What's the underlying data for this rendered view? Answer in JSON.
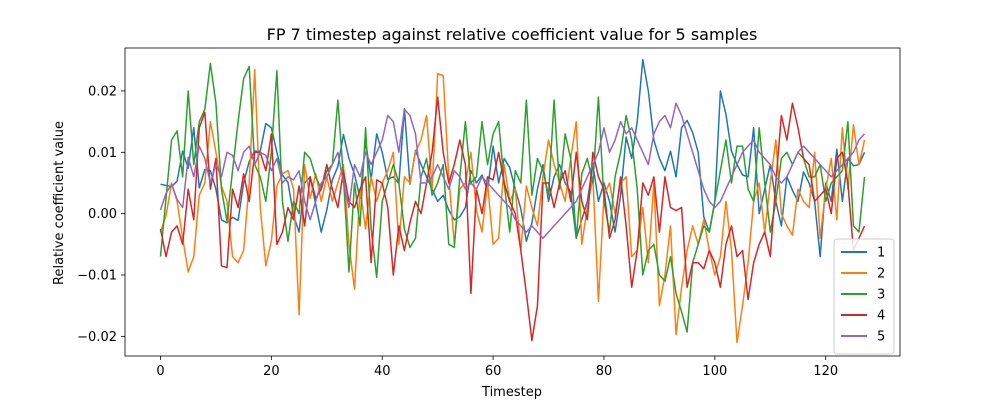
{
  "chart_data": {
    "type": "line",
    "title": "FP 7 timestep against relative coefficient value for 5 samples",
    "xlabel": "Timestep",
    "ylabel": "Relative coefficient value",
    "xlim": [
      -6.4,
      133.4
    ],
    "ylim": [
      -0.0232,
      0.027
    ],
    "xticks": [
      0,
      20,
      40,
      60,
      80,
      100,
      120
    ],
    "xtick_labels": [
      "0",
      "20",
      "40",
      "60",
      "80",
      "100",
      "120"
    ],
    "yticks": [
      -0.02,
      -0.01,
      0.0,
      0.01,
      0.02
    ],
    "ytick_labels": [
      "−0.02",
      "−0.01",
      "0.00",
      "0.01",
      "0.02"
    ],
    "grid": false,
    "legend_position": "lower-right",
    "series": [
      {
        "name": "1",
        "color": "#1f77b4",
        "values": [
          0.0048,
          0.0046,
          0.0044,
          0.0053,
          0.0102,
          0.0074,
          0.014,
          0.0042,
          0.0072,
          0.007,
          0.004,
          -0.001,
          -0.0015,
          -0.0006,
          -0.0011,
          0.005,
          0.0085,
          0.0102,
          0.0102,
          0.0147,
          0.014,
          0.01,
          0.0063,
          0.0051,
          -0.0003,
          -0.003,
          0.005,
          0.006,
          0.0015,
          -0.003,
          0.0006,
          0.0055,
          0.0077,
          0.0129,
          0.009,
          0.0064,
          0.0025,
          0.0118,
          0.0056,
          0.013,
          0.01,
          0.0056,
          0.006,
          0.0049,
          0.0171,
          0.0048,
          0.0103,
          0.008,
          0.006,
          0.004,
          0.002,
          0.003,
          0.0006,
          -0.001,
          -0.0005,
          0.001,
          0.007,
          0.005,
          0.0063,
          0.0038,
          0.011,
          0.005,
          0.009,
          0.0075,
          0.004,
          0.0008,
          -0.0045,
          -0.0015,
          0.004,
          0.008,
          0.002,
          0.006,
          0.008,
          0.005,
          0.0035,
          -0.004,
          -0.001,
          0.002,
          0.008,
          0.002,
          0.005,
          0.002,
          -0.003,
          0.003,
          0.0125,
          0.009,
          0.015,
          0.0251,
          0.02,
          0.012,
          0.009,
          0.007,
          0.0102,
          0.006,
          0.014,
          0.0152,
          0.0132,
          0.01,
          -0.0005,
          -0.003,
          0.002,
          0.02,
          0.0162,
          0.0102,
          0.008,
          0.0063,
          0.006,
          0.014,
          0.0,
          0.004,
          0.008,
          0.002,
          -0.002,
          0.006,
          0.0038,
          0.002,
          0.0068,
          0.005,
          0.002,
          -0.007,
          0.005,
          0.002,
          0.0105,
          0.002,
          0.009,
          0.0078,
          0.008,
          0.01
        ]
      },
      {
        "name": "2",
        "color": "#ff7f0e",
        "values": [
          -0.003,
          -0.0003,
          0.005,
          0.002,
          -0.004,
          -0.0095,
          -0.007,
          0.003,
          0.005,
          0.015,
          0.01,
          0.0045,
          0.002,
          -0.007,
          -0.008,
          -0.006,
          0.005,
          0.0235,
          0.001,
          -0.0085,
          -0.0045,
          0.0045,
          0.0065,
          0.007,
          0.004,
          -0.0165,
          0.008,
          0.0025,
          0.0065,
          0.002,
          0.006,
          0.002,
          0.005,
          0.008,
          -0.005,
          -0.0123,
          0.004,
          -0.0025,
          0.006,
          0.002,
          0.005,
          0.007,
          0.01,
          -0.005,
          0.006,
          0.005,
          0.01,
          0.012,
          0.016,
          0.004,
          0.0228,
          0.0225,
          0.006,
          -0.005,
          0.004,
          0.005,
          0.01,
          0.0005,
          -0.003,
          0.005,
          -0.005,
          -0.004,
          0.008,
          0.002,
          0.004,
          -0.006,
          0.0045,
          0.001,
          -0.002,
          0.006,
          0.012,
          0.008,
          0.005,
          0.002,
          0.009,
          0.015,
          -0.005,
          0.001,
          0.006,
          -0.0143,
          0.003,
          0.005,
          0.0,
          0.005,
          0.006,
          -0.007,
          -0.006,
          0.001,
          -0.008,
          0.005,
          -0.015,
          -0.01,
          -0.002,
          -0.0197,
          -0.012,
          -0.006,
          -0.002,
          -0.005,
          -0.001,
          -0.006,
          -0.01,
          -0.007,
          0.002,
          -0.006,
          -0.021,
          -0.015,
          -0.008,
          0.002,
          0.005,
          -0.003,
          0.005,
          0.012,
          0.0,
          -0.002,
          -0.0035,
          0.004,
          0.002,
          0.001,
          0.01,
          -0.004,
          0.004,
          0.009,
          -0.001,
          0.014,
          0.004,
          0.0145,
          0.008,
          0.012
        ]
      },
      {
        "name": "3",
        "color": "#2ca02c",
        "values": [
          -0.007,
          0.0025,
          0.012,
          0.0135,
          0.006,
          0.02,
          0.008,
          0.015,
          0.017,
          0.0245,
          0.018,
          0.004,
          -0.0012,
          0.007,
          0.015,
          0.022,
          0.024,
          0.008,
          0.006,
          0.002,
          0.01,
          0.0233,
          0.002,
          -0.0045,
          0.002,
          0.0,
          0.01,
          0.009,
          0.006,
          0.004,
          0.007,
          0.008,
          0.0185,
          0.006,
          -0.0095,
          0.005,
          -0.002,
          0.014,
          -0.0025,
          -0.0104,
          0.002,
          0.005,
          0.008,
          0.005,
          -0.0025,
          -0.0055,
          -0.004,
          0.006,
          0.009,
          0.003,
          0.005,
          0.008,
          -0.005,
          -0.0055,
          0.006,
          0.015,
          0.005,
          0.006,
          0.015,
          0.008,
          0.013,
          0.015,
          0.005,
          -0.003,
          0.007,
          0.005,
          0.0185,
          0.003,
          0.009,
          0.007,
          0.003,
          0.0185,
          0.004,
          0.013,
          0.009,
          -0.004,
          0.0065,
          0.009,
          0.005,
          0.019,
          0.002,
          -0.003,
          0.006,
          0.01,
          0.016,
          0.012,
          0.004,
          -0.01,
          -0.006,
          -0.005,
          -0.01,
          -0.011,
          -0.007,
          -0.013,
          -0.016,
          -0.0193,
          -0.008,
          -0.005,
          -0.002,
          -0.003,
          0.002,
          0.007,
          0.012,
          0.005,
          0.011,
          0.011,
          0.004,
          0.002,
          0.014,
          0.005,
          -0.003,
          0.002,
          0.009,
          0.01,
          0.008,
          0.01,
          0.009,
          0.006,
          0.006,
          0.008,
          0.002,
          0.005,
          0.006,
          0.007,
          0.015,
          -0.002,
          -0.003,
          0.006
        ]
      },
      {
        "name": "4",
        "color": "#d62728",
        "values": [
          -0.0025,
          -0.007,
          -0.003,
          -0.002,
          -0.005,
          0.004,
          -0.001,
          0.014,
          0.0165,
          0.004,
          0.009,
          -0.0085,
          -0.0088,
          0.004,
          0.001,
          0.0065,
          0.002,
          0.01,
          0.01,
          0.007,
          0.013,
          -0.005,
          -0.003,
          0.001,
          -0.001,
          0.0045,
          -0.002,
          0.006,
          0.0025,
          0.004,
          0.008,
          0.004,
          0.001,
          0.007,
          0.002,
          0.001,
          0.004,
          0.006,
          -0.008,
          0.0055,
          0.005,
          0.001,
          -0.01,
          -0.002,
          -0.006,
          -0.0015,
          0.002,
          0.0,
          0.005,
          0.01,
          0.019,
          0.01,
          0.005,
          0.008,
          0.012,
          0.008,
          -0.013,
          0.004,
          0.0,
          0.006,
          0.0055,
          0.01,
          0.005,
          0.002,
          0.0,
          -0.006,
          -0.013,
          -0.0207,
          -0.015,
          0.005,
          0.005,
          0.001,
          0.005,
          0.007,
          0.002,
          0.01,
          0.002,
          -0.001,
          0.01,
          0.006,
          0.004,
          -0.004,
          -0.001,
          0.006,
          -0.002,
          -0.012,
          -0.006,
          0.005,
          0.003,
          0.006,
          -0.003,
          0.006,
          0.001,
          0.0005,
          0.001,
          -0.012,
          -0.008,
          -0.008,
          -0.009,
          -0.006,
          -0.008,
          -0.012,
          -0.005,
          -0.002,
          -0.007,
          -0.006,
          -0.014,
          -0.008,
          -0.005,
          -0.003,
          -0.007,
          0.005,
          0.016,
          0.012,
          0.018,
          0.014,
          0.009,
          0.008,
          0.002,
          0.003,
          0.004,
          0.0,
          0.009,
          0.01,
          0.005,
          -0.006,
          -0.004,
          -0.002
        ]
      },
      {
        "name": "5",
        "color": "#9467bd",
        "values": [
          0.0006,
          0.0033,
          0.0048,
          0.0023,
          0.001,
          0.0092,
          0.006,
          0.011,
          0.009,
          0.005,
          0.008,
          0.006,
          0.01,
          0.0095,
          0.007,
          0.01,
          0.011,
          0.008,
          0.01,
          0.0095,
          0.007,
          0.009,
          0.005,
          0.006,
          0.0055,
          0.007,
          0.002,
          -0.001,
          0.002,
          0.005,
          0.006,
          0.008,
          0.01,
          0.005,
          0.001,
          0.008,
          0.006,
          0.01,
          0.008,
          0.01,
          0.012,
          0.016,
          0.015,
          0.01,
          0.017,
          0.016,
          0.013,
          0.005,
          0.005,
          0.006,
          0.008,
          0.006,
          0.004,
          0.007,
          0.006,
          0.004,
          0.005,
          0.004,
          0.006,
          0.005,
          0.004,
          0.003,
          0.002,
          0.001,
          -0.001,
          -0.002,
          -0.003,
          -0.002,
          -0.003,
          -0.004,
          -0.003,
          -0.002,
          -0.001,
          0.0,
          0.001,
          0.002,
          0.004,
          0.006,
          0.008,
          0.01,
          0.014,
          0.01,
          0.012,
          0.015,
          0.013,
          0.014,
          0.012,
          0.01,
          0.008,
          0.013,
          0.015,
          0.016,
          0.014,
          0.018,
          0.016,
          0.013,
          0.01,
          0.007,
          0.004,
          0.002,
          0.001,
          0.002,
          0.004,
          0.006,
          0.008,
          0.01,
          0.011,
          0.012,
          0.01,
          0.009,
          0.008,
          0.006,
          0.005,
          0.006,
          0.008,
          0.01,
          0.011,
          0.01,
          0.009,
          0.008,
          0.007,
          0.006,
          0.007,
          0.008,
          0.009,
          0.01,
          0.012,
          0.013
        ]
      }
    ]
  }
}
